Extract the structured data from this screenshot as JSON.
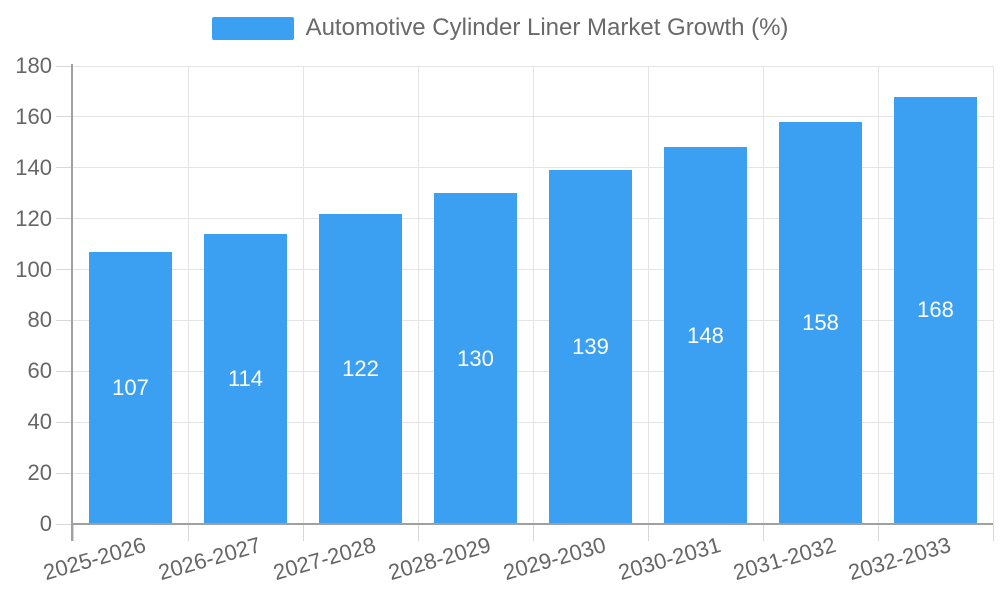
{
  "chart_data": {
    "type": "bar",
    "title": "Automotive Cylinder Liner Market Growth (%)",
    "categories": [
      "2025-2026",
      "2026-2027",
      "2027-2028",
      "2028-2029",
      "2029-2030",
      "2030-2031",
      "2031-2032",
      "2032-2033"
    ],
    "values": [
      107,
      114,
      122,
      130,
      139,
      148,
      158,
      168
    ],
    "xlabel": "",
    "ylabel": "",
    "ylim": [
      0,
      180
    ],
    "ytick_step": 20,
    "grid": "horizontal and vertical light gray gridlines",
    "legend_position": "top-center",
    "bar_color": "#3b9ff2",
    "bar_label_color": "#ffffff",
    "tick_label_color": "#666666",
    "grid_color": "#e4e4e4",
    "tick_mark_color": "#d7d7d7",
    "axis_color": "#a0a0a0",
    "background_color": "#ffffff"
  }
}
